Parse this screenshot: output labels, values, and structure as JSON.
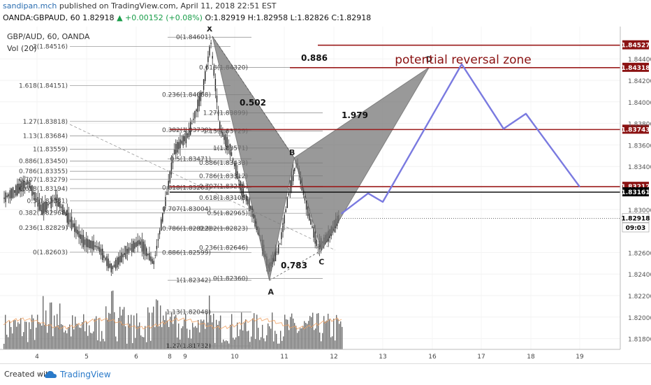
{
  "header": {
    "author": "sandipan.mch",
    "published_text": " published on TradingView.com, April 11, 2018 22:51 EST",
    "symbol_line_prefix": "OANDA:GBPAUD, 60  1.82918",
    "change_text": "+0.00152 (+0.08%)",
    "ohlc_text": " O:1.82919 H:1.82958 L:1.82826 C:1.82918"
  },
  "legend": {
    "symbol": "GBP/AUD, 60, OANDA",
    "volume": "Vol (20)"
  },
  "footer": {
    "created_with": "Created with",
    "brand": "TradingView"
  },
  "annotations": {
    "prz_label": "potential reversal zone",
    "ratio_xb": "0.886",
    "ratio_ab": "0.502",
    "ratio_bc_ext": "1.979",
    "ratio_bc": "0.783",
    "point_x": "X",
    "point_a": "A",
    "point_b": "B",
    "point_c": "C",
    "point_d": "D"
  },
  "chart_data": {
    "type": "line",
    "title": "GBP/AUD, 60, OANDA",
    "x_ticks": [
      "4",
      "5",
      "6",
      "8",
      "9",
      "10",
      "11",
      "12",
      "13",
      "16",
      "17",
      "18",
      "19"
    ],
    "y_ticks": [
      "1.84400",
      "1.84200",
      "1.84000",
      "1.83800",
      "1.83600",
      "1.83400",
      "1.83000",
      "1.82600",
      "1.82400",
      "1.82200",
      "1.82000",
      "1.81800"
    ],
    "ylim": [
      1.817,
      1.847
    ],
    "price_labels": [
      {
        "label": "1.84527",
        "value": 1.84527,
        "color": "#8b1212"
      },
      {
        "label": "1.84318",
        "value": 1.84318,
        "color": "#8b1212"
      },
      {
        "label": "1.83743",
        "value": 1.83743,
        "color": "#8b1212"
      },
      {
        "label": "1.83212",
        "value": 1.83212,
        "color": "#8b1212"
      },
      {
        "label": "1.83161",
        "value": 1.83161,
        "color": "#000000"
      },
      {
        "label": "1.82918",
        "value": 1.82918,
        "color": "#ffffff",
        "text_color": "#000000"
      },
      {
        "label": "09:03",
        "value": 1.8283,
        "color": "#ffffff",
        "text_color": "#000000"
      }
    ],
    "fib_left_labels": [
      "2(1.84516)",
      "1.618(1.84151)",
      "1.27(1.83818)",
      "1.13(1.83684)",
      "1(1.83559)",
      "0.886(1.83450)",
      "0.786(1.83355)",
      "0.707(1.83279)",
      "0.618(1.83194)",
      "0.5(1.83081)",
      "0.382(1.82968)",
      "0.236(1.82829)",
      "0(1.82603)"
    ],
    "fib_mid_labels": [
      "0(1.84601)",
      "0.236(1.84068)",
      "0.382(1.83738)",
      "0.5(1.83471)",
      "0.618(1.83203)",
      "0.707(1.83004)",
      "0.786(1.82822)",
      "0.886(1.82599)",
      "1(1.82342)",
      "1.13(1.82048)",
      "1.27(1.81732)"
    ],
    "fib_right_labels": [
      "0.618(1.84320)",
      "1.27(1.83899)",
      "1.13(1.83729)",
      "1(1.83571)",
      "0.886(1.83433)",
      "0.786(1.83312)",
      "0.707(1.83216)",
      "0.618(1.83108)",
      "0.5(1.82965)",
      "0.382(1.82823)",
      "0.236(1.82646)",
      "0(1.82360)"
    ],
    "xabcd_pattern": [
      {
        "point": "X",
        "x": 9.55,
        "price": 1.8461
      },
      {
        "point": "A",
        "x": 10.7,
        "price": 1.8234
      },
      {
        "point": "B",
        "x": 11.2,
        "price": 1.8348
      },
      {
        "point": "C",
        "x": 11.75,
        "price": 1.8262
      },
      {
        "point": "D",
        "x": 15.8,
        "price": 1.8432
      }
    ],
    "series": [
      {
        "name": "",
        "color": "#7a7ae0",
        "points": [
          {
            "x": 12.15,
            "y": 1.8296
          },
          {
            "x": 12.7,
            "y": 1.8315
          },
          {
            "x": 13.0,
            "y": 1.8307
          },
          {
            "x": 16.6,
            "y": 1.8435
          },
          {
            "x": 17.45,
            "y": 1.8375
          },
          {
            "x": 17.9,
            "y": 1.8389
          },
          {
            "x": 19.0,
            "y": 1.8321
          }
        ]
      }
    ]
  }
}
